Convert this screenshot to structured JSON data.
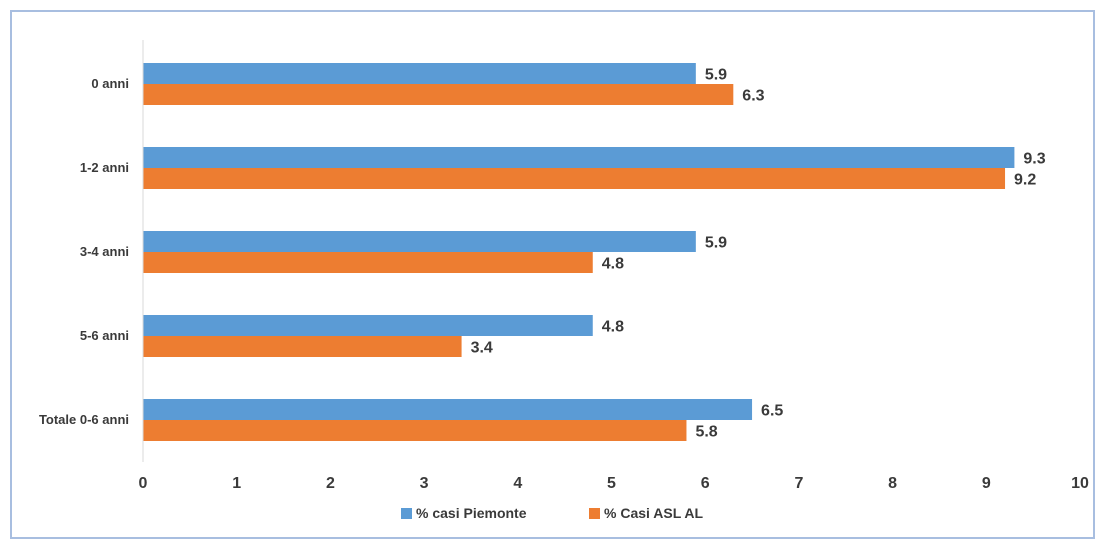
{
  "chart_data": {
    "type": "bar",
    "orientation": "horizontal",
    "categories": [
      "0 anni",
      "1-2 anni",
      "3-4 anni",
      "5-6 anni",
      "Totale 0-6 anni"
    ],
    "series": [
      {
        "name": "% casi Piemonte",
        "color": "#5b9bd5",
        "values": [
          5.9,
          9.3,
          5.9,
          4.8,
          6.5
        ]
      },
      {
        "name": "% Casi ASL AL",
        "color": "#ed7d31",
        "values": [
          6.3,
          9.2,
          4.8,
          3.4,
          5.8
        ]
      }
    ],
    "xlim": [
      0,
      10
    ],
    "xticks": [
      0,
      1,
      2,
      3,
      4,
      5,
      6,
      7,
      8,
      9,
      10
    ],
    "legend_position": "bottom",
    "grid": false,
    "title": "",
    "xlabel": "",
    "ylabel": ""
  }
}
